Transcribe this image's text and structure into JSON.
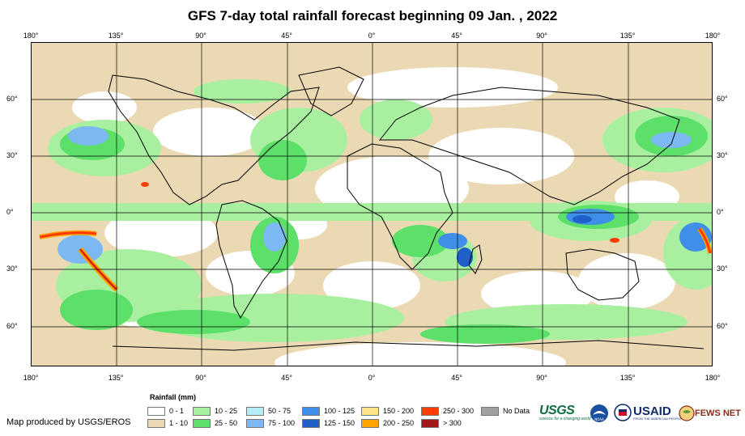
{
  "title": "GFS 7-day total rainfall forecast beginning 09 Jan. , 2022",
  "longitude_labels": [
    "180°",
    "135°",
    "90°",
    "45°",
    "0°",
    "45°",
    "90°",
    "135°",
    "180°"
  ],
  "latitude_labels": [
    "60°",
    "30°",
    "0°",
    "30°",
    "60°"
  ],
  "legend": {
    "title": "Rainfall (mm)",
    "items": [
      {
        "label": "0 - 1",
        "color": "#ffffff"
      },
      {
        "label": "1 - 10",
        "color": "#ebd9b4"
      },
      {
        "label": "10 - 25",
        "color": "#a8f0a0"
      },
      {
        "label": "25 - 50",
        "color": "#5ce06a"
      },
      {
        "label": "50 - 75",
        "color": "#b7ecf7"
      },
      {
        "label": "75 - 100",
        "color": "#7cb8f2"
      },
      {
        "label": "100 - 125",
        "color": "#3f8fe8"
      },
      {
        "label": "125 - 150",
        "color": "#1f5fc8"
      },
      {
        "label": "150 - 200",
        "color": "#ffe48a"
      },
      {
        "label": "200 - 250",
        "color": "#ffa400"
      },
      {
        "label": "250 - 300",
        "color": "#ff3b00"
      },
      {
        "label": "> 300",
        "color": "#a01818"
      },
      {
        "label": "No Data",
        "color": "#a0a0a0"
      }
    ]
  },
  "credit": "Map produced by USGS/EROS",
  "logos": {
    "usgs": "USGS",
    "usgs_tagline": "science for a changing world",
    "noaa": "NOAA",
    "usaid": "USAID",
    "usaid_tagline": "FROM THE AMERICAN PEOPLE",
    "fews": "FEWS NET"
  }
}
